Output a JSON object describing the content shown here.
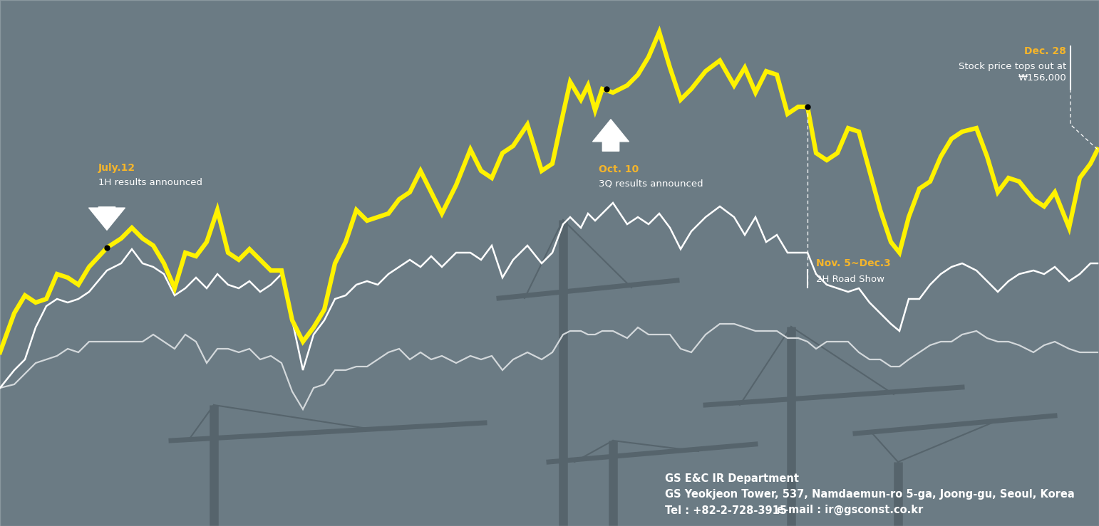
{
  "chart_data": {
    "type": "line",
    "x": [
      0,
      20,
      35,
      50,
      65,
      80,
      95,
      110,
      125,
      150,
      170,
      185,
      200,
      215,
      230,
      245,
      260,
      275,
      290,
      305,
      320,
      335,
      350,
      365,
      380,
      395,
      410,
      425,
      440,
      455,
      470,
      485,
      500,
      515,
      530,
      545,
      560,
      575,
      590,
      605,
      620,
      640,
      660,
      675,
      690,
      705,
      720,
      740,
      760,
      775,
      790,
      800,
      815,
      825,
      835,
      845,
      860,
      880,
      895,
      910,
      925,
      940,
      955,
      970,
      990,
      1010,
      1030,
      1045,
      1060,
      1075,
      1090,
      1105,
      1120,
      1133,
      1145,
      1160,
      1175,
      1190,
      1205,
      1220,
      1235,
      1250,
      1262,
      1275,
      1290,
      1305,
      1320,
      1335,
      1350,
      1370,
      1385,
      1400,
      1415,
      1430,
      1450,
      1465,
      1480,
      1500,
      1515,
      1530,
      1540
    ],
    "series": [
      {
        "color": "#fff200",
        "values": [
          244,
          299,
          324,
          314,
          319,
          354,
          349,
          339,
          364,
          391,
          404,
          419,
          404,
          394,
          369,
          334,
          384,
          379,
          399,
          444,
          384,
          374,
          389,
          374,
          359,
          359,
          289,
          259,
          279,
          304,
          369,
          399,
          444,
          429,
          434,
          439,
          459,
          469,
          499,
          469,
          439,
          479,
          529,
          499,
          489,
          524,
          534,
          564,
          499,
          509,
          579,
          624,
          599,
          619,
          584,
          614,
          609,
          619,
          634,
          659,
          694,
          644,
          599,
          614,
          639,
          654,
          619,
          644,
          609,
          639,
          634,
          579,
          589,
          589,
          524,
          514,
          524,
          559,
          554,
          499,
          444,
          399,
          384,
          434,
          474,
          484,
          519,
          544,
          554,
          559,
          519,
          469,
          489,
          484,
          459,
          449,
          469,
          419,
          489,
          509,
          529
        ]
      },
      {
        "color": "#ffffff",
        "values": [
          194,
          219,
          234,
          279,
          309,
          319,
          314,
          319,
          329,
          359,
          369,
          389,
          369,
          364,
          354,
          324,
          334,
          349,
          334,
          354,
          339,
          334,
          344,
          329,
          339,
          354,
          289,
          219,
          269,
          289,
          319,
          324,
          339,
          344,
          339,
          354,
          364,
          374,
          364,
          379,
          364,
          384,
          384,
          374,
          394,
          349,
          374,
          394,
          369,
          384,
          424,
          434,
          419,
          439,
          429,
          439,
          454,
          424,
          434,
          424,
          439,
          419,
          389,
          414,
          434,
          449,
          434,
          409,
          434,
          399,
          409,
          384,
          384,
          384,
          354,
          339,
          334,
          329,
          334,
          314,
          299,
          284,
          274,
          319,
          319,
          339,
          354,
          364,
          369,
          359,
          344,
          329,
          344,
          354,
          359,
          354,
          364,
          344,
          354,
          369,
          369
        ]
      },
      {
        "color": "#d3d8db",
        "values": [
          194,
          199,
          214,
          229,
          234,
          239,
          249,
          244,
          259,
          259,
          259,
          259,
          259,
          269,
          259,
          249,
          269,
          259,
          229,
          249,
          249,
          244,
          249,
          234,
          239,
          229,
          189,
          164,
          194,
          199,
          219,
          219,
          224,
          224,
          234,
          244,
          249,
          234,
          244,
          234,
          239,
          229,
          239,
          234,
          239,
          219,
          234,
          244,
          234,
          244,
          269,
          274,
          274,
          269,
          269,
          274,
          274,
          264,
          279,
          269,
          269,
          269,
          249,
          244,
          269,
          284,
          284,
          279,
          274,
          274,
          274,
          264,
          264,
          259,
          249,
          259,
          259,
          259,
          244,
          234,
          234,
          224,
          224,
          234,
          244,
          254,
          259,
          259,
          269,
          274,
          264,
          259,
          259,
          254,
          244,
          254,
          259,
          249,
          244,
          244,
          244
        ]
      }
    ],
    "xlim": [
      0,
      1542
    ],
    "ylim": [
      0,
      739
    ],
    "tick_labels": false,
    "annotations": [
      {
        "x": 150,
        "date": "July.12",
        "text": "1H results announced"
      },
      {
        "x": 845,
        "date": "Oct. 10",
        "text": "3Q results announced"
      },
      {
        "x": 1133,
        "date": "Nov. 5~Dec.3",
        "text": "2H Road Show"
      },
      {
        "x": 1540,
        "date": "Dec. 28",
        "text": "Stock price tops out at\n₩156,000"
      }
    ]
  },
  "contact": {
    "department": "GS E&C IR Department",
    "address": "GS Yeokjeon Tower, 537, Namdaemun-ro 5-ga, Joong-gu, Seoul, Korea",
    "tel": "Tel : +82-2-728-3915",
    "email": "e-mail : ir@gsconst.co.kr"
  }
}
